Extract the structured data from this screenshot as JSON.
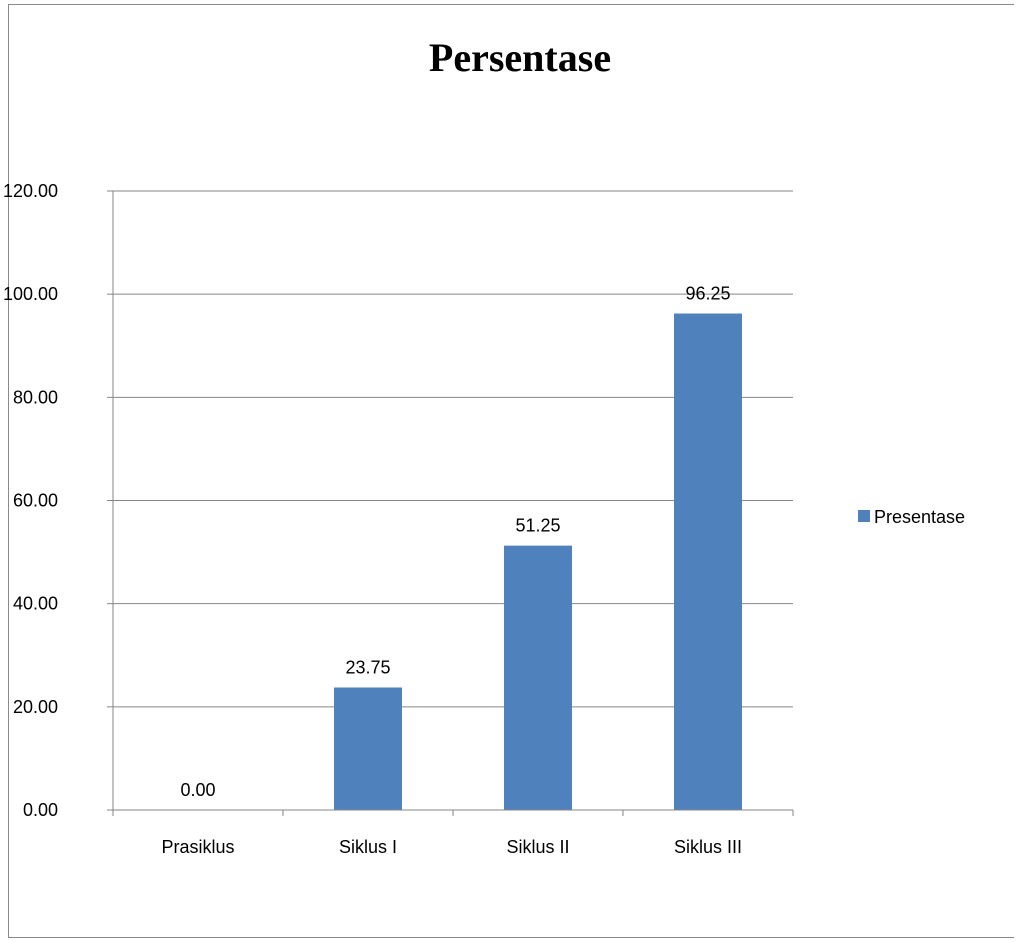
{
  "chart_data": {
    "type": "bar",
    "title": "Persentase",
    "categories": [
      "Prasiklus",
      "Siklus I",
      "Siklus II",
      "Siklus III"
    ],
    "series": [
      {
        "name": "Presentase",
        "values": [
          0.0,
          23.75,
          51.25,
          96.25
        ],
        "color": "#4f81bd"
      }
    ],
    "data_labels": [
      "0.00",
      "23.75",
      "51.25",
      "96.25"
    ],
    "y_ticks": [
      "0.00",
      "20.00",
      "40.00",
      "60.00",
      "80.00",
      "100.00",
      "120.00"
    ],
    "ylim": [
      0,
      120
    ],
    "grid": true,
    "legend_position": "right"
  }
}
